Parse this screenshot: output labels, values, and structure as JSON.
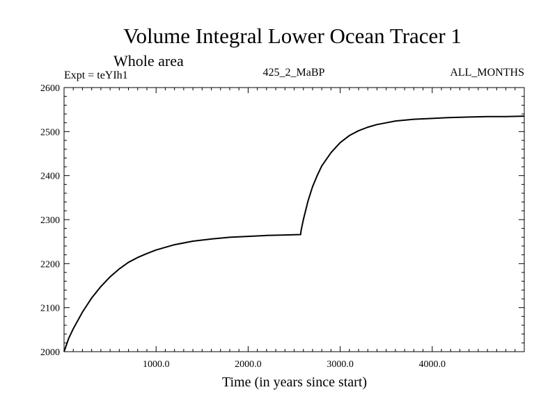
{
  "chart_data": {
    "type": "line",
    "title": "Volume Integral Lower Ocean Tracer 1",
    "subtitle": "Whole area",
    "annotations": {
      "left": "Expt = teYIh1",
      "center": "425_2_MaBP",
      "right": "ALL_MONTHS"
    },
    "xlabel": "Time (in years since start)",
    "ylabel": "",
    "xlim": [
      0,
      5000
    ],
    "ylim": [
      2000,
      2600
    ],
    "x_ticks": [
      1000,
      2000,
      3000,
      4000
    ],
    "x_tick_labels": [
      "1000.0",
      "2000.0",
      "3000.0",
      "4000.0"
    ],
    "y_ticks": [
      2000,
      2100,
      2200,
      2300,
      2400,
      2500,
      2600
    ],
    "y_tick_labels": [
      "2000",
      "2100",
      "2200",
      "2300",
      "2400",
      "2500",
      "2600"
    ],
    "grid": false,
    "series": [
      {
        "name": "Tracer 1",
        "color": "#000000",
        "x": [
          0,
          50,
          100,
          200,
          300,
          400,
          500,
          600,
          700,
          800,
          900,
          1000,
          1200,
          1400,
          1600,
          1800,
          2000,
          2200,
          2400,
          2570,
          2575,
          2600,
          2650,
          2700,
          2750,
          2800,
          2900,
          3000,
          3100,
          3200,
          3300,
          3400,
          3500,
          3600,
          3700,
          3800,
          3900,
          4000,
          4200,
          4400,
          4600,
          4800,
          5000
        ],
        "values": [
          2000,
          2030,
          2052,
          2090,
          2122,
          2148,
          2170,
          2188,
          2203,
          2214,
          2223,
          2231,
          2243,
          2251,
          2256,
          2260,
          2262,
          2264,
          2265,
          2266,
          2275,
          2300,
          2342,
          2375,
          2400,
          2422,
          2452,
          2475,
          2491,
          2502,
          2510,
          2516,
          2520,
          2524,
          2526,
          2528,
          2529,
          2530,
          2532,
          2533,
          2534,
          2534,
          2535
        ]
      }
    ]
  }
}
